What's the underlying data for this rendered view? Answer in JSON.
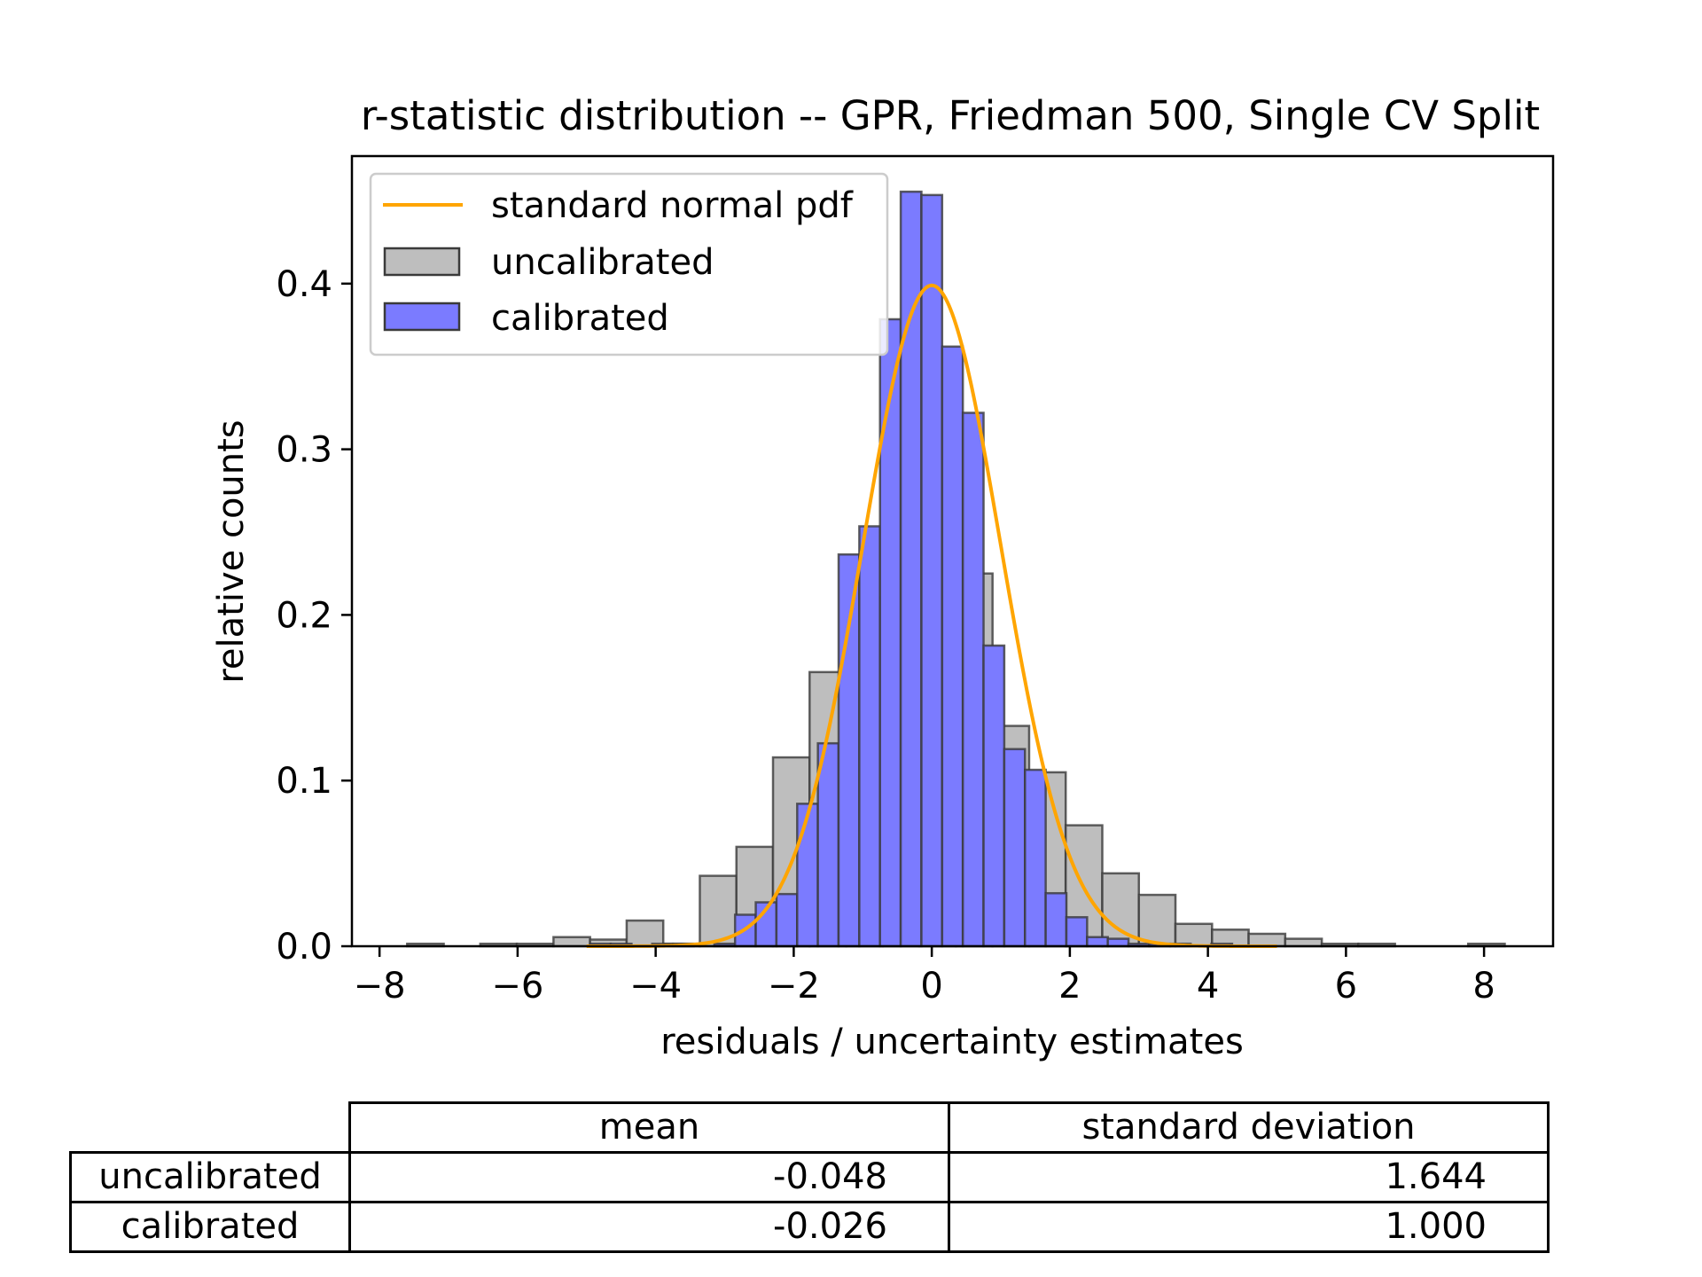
{
  "chart_data": {
    "type": "bar",
    "title": "r-statistic distribution -- GPR, Friedman 500, Single CV Split",
    "xlabel": "residuals / uncertainty estimates",
    "ylabel": "relative counts",
    "xlim": [
      -8.4,
      9.0
    ],
    "ylim": [
      0,
      0.477
    ],
    "xticks": [
      -8,
      -6,
      -4,
      -2,
      0,
      2,
      4,
      6,
      8
    ],
    "xtick_labels": [
      "−8",
      "−6",
      "−4",
      "−2",
      "0",
      "2",
      "4",
      "6",
      "8"
    ],
    "yticks": [
      0.0,
      0.1,
      0.2,
      0.3,
      0.4
    ],
    "ytick_labels": [
      "0.0",
      "0.1",
      "0.2",
      "0.3",
      "0.4"
    ],
    "grid": false,
    "legend_position": "top-left",
    "legend": [
      "standard normal pdf",
      "uncalibrated",
      "calibrated"
    ],
    "colors": {
      "pdf_line": "#ffa500",
      "uncalibrated_fill": "#bebebe",
      "calibrated_fill": "#7b7bff",
      "edge": "#3a3a3a"
    },
    "series": [
      {
        "name": "uncalibrated",
        "kind": "histogram",
        "bin_edges": [
          -7.6,
          -7.07,
          -6.54,
          -6.01,
          -5.48,
          -4.95,
          -4.42,
          -3.89,
          -3.36,
          -2.83,
          -2.3,
          -1.77,
          -1.24,
          -0.71,
          -0.18,
          0.35,
          0.88,
          1.41,
          1.94,
          2.47,
          3.0,
          3.53,
          4.06,
          4.59,
          5.12,
          5.65,
          6.18,
          6.71,
          7.24,
          7.77,
          8.3
        ],
        "heights": [
          0.0015,
          0.0,
          0.0015,
          0.0015,
          0.0055,
          0.004,
          0.0155,
          0.0015,
          0.0425,
          0.06,
          0.114,
          0.1655,
          0.2105,
          0.2865,
          0.2785,
          0.225,
          0.133,
          0.105,
          0.073,
          0.044,
          0.031,
          0.0135,
          0.01,
          0.0075,
          0.0045,
          0.0015,
          0.0015,
          0.0,
          0.0,
          0.0015
        ]
      },
      {
        "name": "calibrated",
        "kind": "histogram",
        "bin_edges": [
          -4.95,
          -4.65,
          -4.35,
          -4.05,
          -3.75,
          -3.45,
          -3.15,
          -2.85,
          -2.55,
          -2.25,
          -1.95,
          -1.65,
          -1.35,
          -1.05,
          -0.75,
          -0.45,
          -0.15,
          0.15,
          0.45,
          0.75,
          1.05,
          1.35,
          1.65,
          1.95,
          2.25,
          2.55,
          2.85,
          3.15,
          3.45,
          3.75,
          4.05,
          4.35,
          4.65,
          4.95
        ],
        "heights": [
          0.0015,
          0.0015,
          0.0,
          0.0015,
          0.0015,
          0.0,
          0.0015,
          0.019,
          0.0265,
          0.0315,
          0.086,
          0.1225,
          0.2365,
          0.2535,
          0.3785,
          0.4555,
          0.4535,
          0.362,
          0.322,
          0.1815,
          0.119,
          0.1065,
          0.032,
          0.0175,
          0.0055,
          0.0045,
          0.0015,
          0.0015,
          0.0015,
          0.0,
          0.0015,
          0.0,
          0.0
        ]
      },
      {
        "name": "standard normal pdf",
        "kind": "line",
        "function": "standard normal pdf",
        "x_range": [
          -5.0,
          5.0
        ]
      }
    ]
  },
  "table": {
    "columns": [
      "mean",
      "standard deviation"
    ],
    "rows": [
      {
        "label": "uncalibrated",
        "mean": "-0.048",
        "std": "1.644"
      },
      {
        "label": "calibrated",
        "mean": "-0.026",
        "std": "1.000"
      }
    ]
  }
}
